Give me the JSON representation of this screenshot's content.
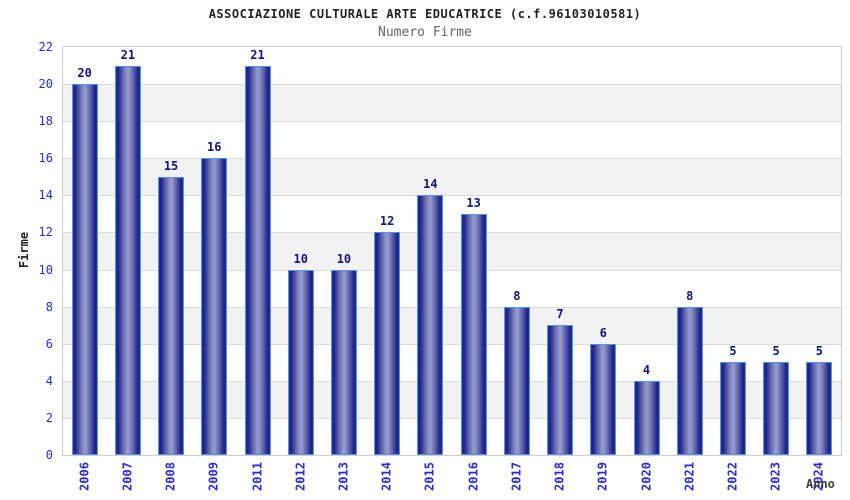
{
  "chart_data": {
    "type": "bar",
    "title": "ASSOCIAZIONE CULTURALE ARTE EDUCATRICE (c.f.96103010581)",
    "subtitle": "Numero Firme",
    "xlabel": "Anno",
    "ylabel": "Firme",
    "categories": [
      "2006",
      "2007",
      "2008",
      "2009",
      "2011",
      "2012",
      "2013",
      "2014",
      "2015",
      "2016",
      "2017",
      "2018",
      "2019",
      "2020",
      "2021",
      "2022",
      "2023",
      "2024"
    ],
    "values": [
      20,
      21,
      15,
      16,
      21,
      10,
      10,
      12,
      14,
      13,
      8,
      7,
      6,
      4,
      8,
      5,
      5,
      5
    ],
    "ylim": [
      0,
      22
    ],
    "yticks": [
      0,
      2,
      4,
      6,
      8,
      10,
      12,
      14,
      16,
      18,
      20,
      22
    ],
    "grid": "horizontal-bands-alternating",
    "legend": "none",
    "colors": {
      "band_gray": "#f2f2f2",
      "band_white": "#ffffff",
      "gridline": "#dcdcdc",
      "plot_border": "#cfcfcf",
      "bar_border": "#5593e8",
      "bar_dark": "#1d2280",
      "bar_light": "#9aa0d0",
      "value_label": "#14147d",
      "tick_label": "#2b2bd0",
      "title": "#222222",
      "subtitle": "#666666",
      "axis_label": "#3d3d3d"
    }
  }
}
